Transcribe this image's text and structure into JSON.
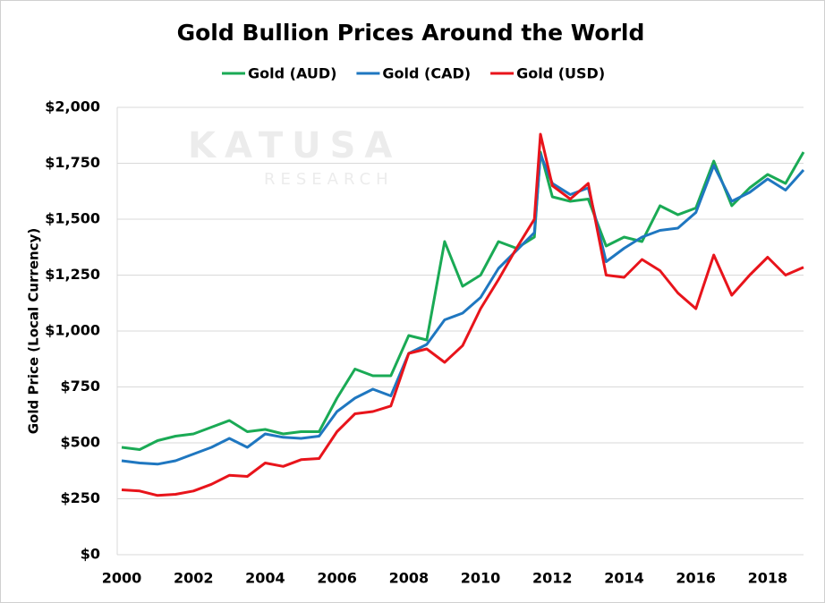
{
  "chart_data": {
    "type": "line",
    "title": "Gold Bullion Prices Around the World",
    "ylabel": "Gold Price (Local Currency)",
    "watermark": [
      "KATUSA",
      "RESEARCH"
    ],
    "legend": "top",
    "grid": true,
    "x": [
      2000,
      2000.5,
      2001,
      2001.5,
      2002,
      2002.5,
      2003,
      2003.5,
      2004,
      2004.5,
      2005,
      2005.5,
      2006,
      2006.5,
      2007,
      2007.5,
      2008,
      2008.5,
      2009,
      2009.5,
      2010,
      2010.5,
      2011,
      2011.5,
      2011.67,
      2012,
      2012.5,
      2013,
      2013.5,
      2014,
      2014.5,
      2015,
      2015.5,
      2016,
      2016.5,
      2017,
      2017.5,
      2018,
      2018.5,
      2019
    ],
    "series": [
      {
        "name": "Gold (AUD)",
        "color": "#1aaa55",
        "values": [
          480,
          470,
          510,
          530,
          540,
          570,
          600,
          550,
          560,
          540,
          550,
          550,
          700,
          830,
          800,
          800,
          980,
          960,
          1400,
          1200,
          1250,
          1400,
          1370,
          1420,
          1800,
          1600,
          1580,
          1590,
          1380,
          1420,
          1400,
          1560,
          1520,
          1550,
          1760,
          1560,
          1640,
          1700,
          1660,
          1800
        ]
      },
      {
        "name": "Gold (CAD)",
        "color": "#1f77c0",
        "values": [
          420,
          410,
          405,
          420,
          450,
          480,
          520,
          480,
          540,
          525,
          520,
          530,
          640,
          700,
          740,
          710,
          900,
          940,
          1050,
          1080,
          1150,
          1280,
          1360,
          1440,
          1790,
          1660,
          1610,
          1640,
          1310,
          1370,
          1420,
          1450,
          1460,
          1530,
          1740,
          1580,
          1620,
          1680,
          1630,
          1720
        ]
      },
      {
        "name": "Gold (USD)",
        "color": "#e8141b",
        "values": [
          290,
          285,
          265,
          270,
          285,
          315,
          355,
          350,
          410,
          395,
          425,
          430,
          550,
          630,
          640,
          665,
          900,
          920,
          860,
          935,
          1100,
          1230,
          1370,
          1500,
          1880,
          1650,
          1590,
          1660,
          1250,
          1240,
          1320,
          1270,
          1170,
          1100,
          1340,
          1160,
          1250,
          1330,
          1250,
          1285
        ]
      }
    ],
    "xlim": [
      2000,
      2019
    ],
    "xticks": [
      2000,
      2002,
      2004,
      2006,
      2008,
      2010,
      2012,
      2014,
      2016,
      2018
    ],
    "ylim": [
      0,
      2000
    ],
    "yticks": [
      {
        "value": 0,
        "label": "$0"
      },
      {
        "value": 250,
        "label": "$250"
      },
      {
        "value": 500,
        "label": "$500"
      },
      {
        "value": 750,
        "label": "$750"
      },
      {
        "value": 1000,
        "label": "$1,000"
      },
      {
        "value": 1250,
        "label": "$1,250"
      },
      {
        "value": 1500,
        "label": "$1,500"
      },
      {
        "value": 1750,
        "label": "$1,750"
      },
      {
        "value": 2000,
        "label": "$2,000"
      }
    ]
  }
}
